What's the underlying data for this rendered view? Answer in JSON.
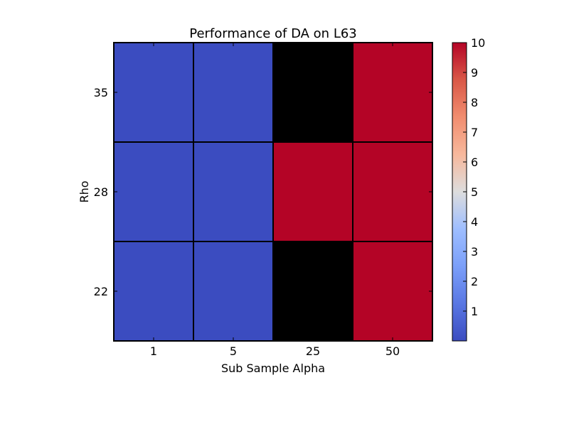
{
  "chart_data": {
    "type": "heatmap",
    "title": "Performance of DA on L63",
    "xlabel": "Sub Sample Alpha",
    "ylabel": "Rho",
    "x_categories": [
      "1",
      "5",
      "25",
      "50"
    ],
    "y_categories": [
      "35",
      "28",
      "22"
    ],
    "values": [
      [
        0,
        0,
        null,
        10
      ],
      [
        0,
        0,
        10,
        10
      ],
      [
        0,
        0,
        null,
        10
      ]
    ],
    "missing_color": "#000000",
    "colormap": "coolwarm",
    "colorbar": {
      "min": 0,
      "max": 10,
      "ticks": [
        "1",
        "2",
        "3",
        "4",
        "5",
        "6",
        "7",
        "8",
        "9",
        "10"
      ]
    }
  }
}
